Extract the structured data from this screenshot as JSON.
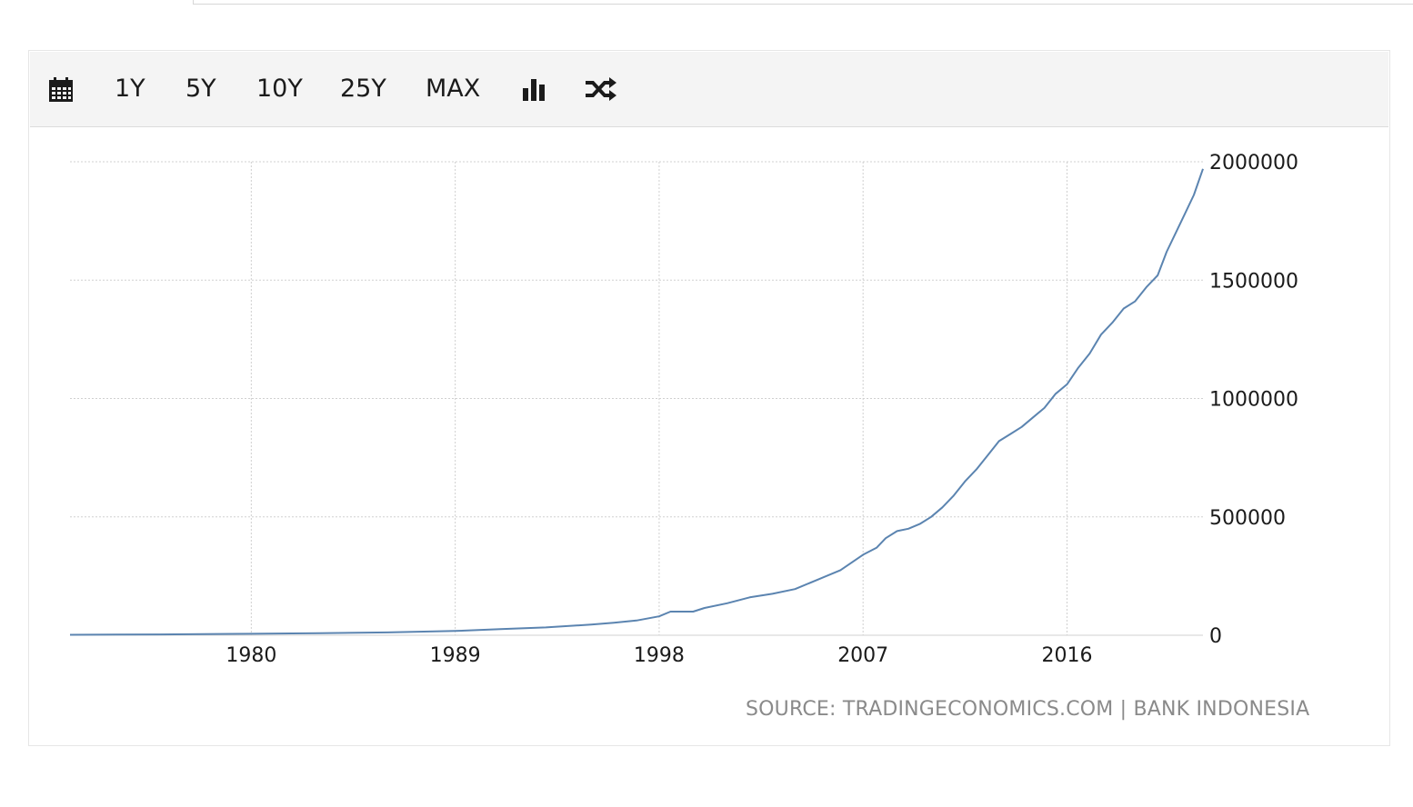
{
  "toolbar": {
    "calendar_icon": "calendar-icon",
    "ranges": [
      "1Y",
      "5Y",
      "10Y",
      "25Y",
      "MAX"
    ],
    "bar_chart_icon": "bar-chart-icon",
    "shuffle_icon": "shuffle-icon"
  },
  "source": "SOURCE: TRADINGECONOMICS.COM | BANK INDONESIA",
  "chart_data": {
    "type": "line",
    "title": "",
    "xlabel": "",
    "ylabel": "",
    "x_ticks": [
      "1980",
      "1989",
      "1998",
      "2007",
      "2016"
    ],
    "y_ticks": [
      "0",
      "500000",
      "1000000",
      "1500000",
      "2000000"
    ],
    "xlim": [
      1972,
      2022
    ],
    "ylim": [
      0,
      2000000
    ],
    "grid": true,
    "y_axis_side": "right",
    "line_color": "#5b84b0",
    "series": [
      {
        "name": "",
        "points": [
          [
            1972.0,
            2000
          ],
          [
            1976.0,
            3500
          ],
          [
            1980.0,
            6000
          ],
          [
            1983.0,
            9000
          ],
          [
            1986.0,
            12000
          ],
          [
            1989.0,
            18000
          ],
          [
            1991.0,
            26000
          ],
          [
            1993.0,
            33000
          ],
          [
            1995.0,
            45000
          ],
          [
            1996.0,
            53000
          ],
          [
            1997.0,
            62000
          ],
          [
            1998.0,
            80000
          ],
          [
            1998.5,
            100000
          ],
          [
            1999.5,
            100000
          ],
          [
            2000.0,
            115000
          ],
          [
            2001.0,
            135000
          ],
          [
            2002.0,
            160000
          ],
          [
            2003.0,
            175000
          ],
          [
            2004.0,
            195000
          ],
          [
            2005.0,
            235000
          ],
          [
            2006.0,
            275000
          ],
          [
            2007.0,
            340000
          ],
          [
            2007.6,
            370000
          ],
          [
            2008.0,
            410000
          ],
          [
            2008.5,
            440000
          ],
          [
            2009.0,
            450000
          ],
          [
            2009.5,
            470000
          ],
          [
            2010.0,
            500000
          ],
          [
            2010.5,
            540000
          ],
          [
            2011.0,
            590000
          ],
          [
            2011.5,
            650000
          ],
          [
            2012.0,
            700000
          ],
          [
            2012.5,
            760000
          ],
          [
            2013.0,
            820000
          ],
          [
            2013.5,
            850000
          ],
          [
            2014.0,
            880000
          ],
          [
            2014.5,
            920000
          ],
          [
            2015.0,
            960000
          ],
          [
            2015.5,
            1020000
          ],
          [
            2016.0,
            1060000
          ],
          [
            2016.5,
            1130000
          ],
          [
            2017.0,
            1190000
          ],
          [
            2017.5,
            1270000
          ],
          [
            2018.0,
            1320000
          ],
          [
            2018.5,
            1380000
          ],
          [
            2019.0,
            1410000
          ],
          [
            2019.5,
            1470000
          ],
          [
            2020.0,
            1520000
          ],
          [
            2020.4,
            1620000
          ],
          [
            2020.8,
            1700000
          ],
          [
            2021.2,
            1780000
          ],
          [
            2021.6,
            1860000
          ],
          [
            2022.0,
            1970000
          ]
        ]
      }
    ]
  }
}
